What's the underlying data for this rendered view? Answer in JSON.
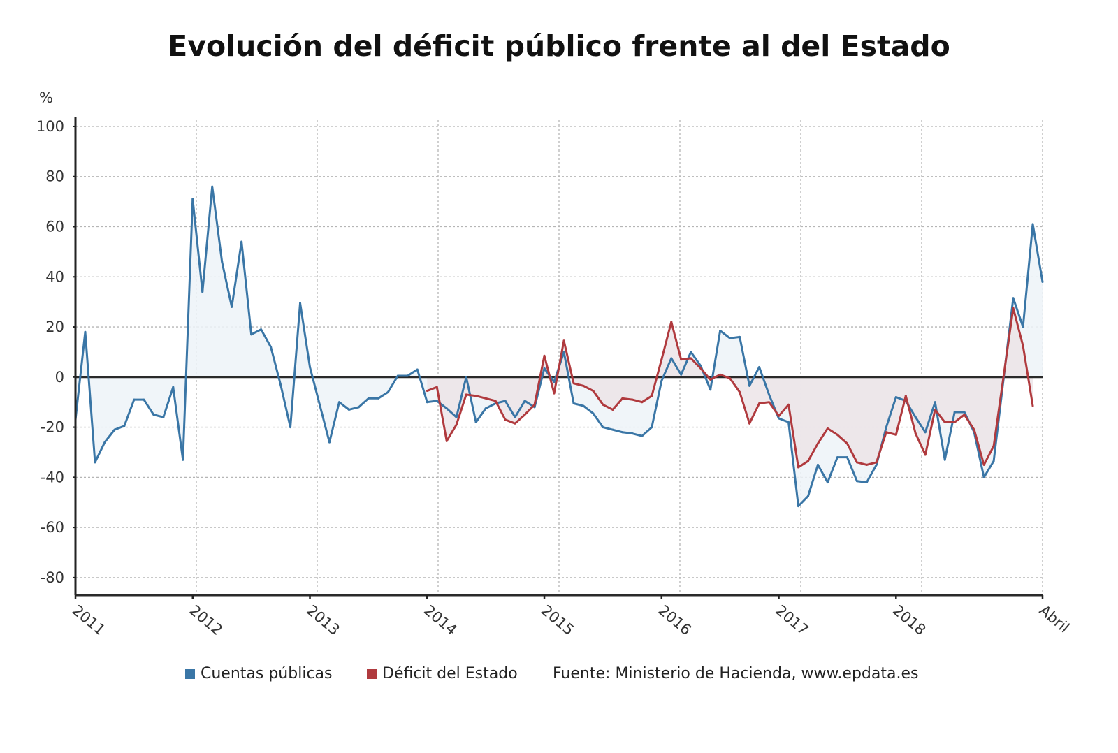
{
  "chart_data": {
    "type": "area",
    "title": "Evolución del déficit público frente al del Estado",
    "ylabel": "%",
    "ylim": [
      -87,
      102.5
    ],
    "yticks": [
      100,
      80,
      60,
      40,
      20,
      0,
      -20,
      -40,
      -60,
      -80
    ],
    "x_start": "2011-01",
    "x_end": "2019-04",
    "xtick_labels": [
      {
        "month_index": 0,
        "label": "2011"
      },
      {
        "month_index": 12,
        "label": "2012"
      },
      {
        "month_index": 24,
        "label": "2013"
      },
      {
        "month_index": 36,
        "label": "2014"
      },
      {
        "month_index": 48,
        "label": "2015"
      },
      {
        "month_index": 60,
        "label": "2016"
      },
      {
        "month_index": 72,
        "label": "2017"
      },
      {
        "month_index": 84,
        "label": "2018"
      },
      {
        "month_index": 99,
        "label": "Abril"
      }
    ],
    "grid": true,
    "legend_position": "bottom",
    "series": [
      {
        "name": "Cuentas públicas",
        "color": "#3a76a6",
        "fill": "#edf3f8",
        "start_index": 0,
        "values": [
          -17,
          18,
          -34,
          -26,
          -21,
          -19.5,
          -9,
          -9,
          -15,
          -16,
          -4,
          -33,
          71,
          34,
          76,
          46,
          28,
          54,
          17,
          19,
          12,
          -3,
          -20,
          29.5,
          4,
          -11,
          -26,
          -10,
          -13,
          -12,
          -8.5,
          -8.5,
          -6,
          0.5,
          0.5,
          3,
          -10,
          -9.5,
          -12.5,
          -16,
          0,
          -18,
          -12.5,
          -10.5,
          -9.5,
          -16,
          -9.5,
          -12,
          3.5,
          -2,
          10,
          -10.5,
          -11.5,
          -14.5,
          -20,
          -21,
          -22,
          -22.5,
          -23.5,
          -20,
          -1.5,
          7.5,
          1,
          10,
          4.5,
          -5,
          18.5,
          15.5,
          16,
          -3.5,
          4,
          -7,
          -16.5,
          -18,
          -51.5,
          -47.5,
          -35,
          -42,
          -32,
          -32,
          -41.5,
          -42,
          -35,
          -20,
          -8,
          -9.5,
          -16,
          -22,
          -10,
          -33,
          -14,
          -14,
          -22,
          -40,
          -33.5,
          -1,
          31.5,
          20,
          61,
          38
        ]
      },
      {
        "name": "Déficit del Estado",
        "color": "#b03a3e",
        "fill": "#ece4e8",
        "start_index": 36,
        "values": [
          -5.5,
          -4,
          -25.5,
          -19,
          -7,
          -7.5,
          -8.5,
          -9.5,
          -17,
          -18.5,
          -15,
          -11,
          8.5,
          -6.5,
          14.5,
          -2.5,
          -3.5,
          -5.5,
          -11,
          -13,
          -8.5,
          -9,
          -10,
          -7.5,
          7,
          22,
          7,
          7.5,
          3.5,
          -1,
          1,
          -0.5,
          -6,
          -18.5,
          -10.5,
          -10,
          -15.5,
          -11,
          -36,
          -33.5,
          -26.5,
          -20.5,
          -23,
          -26.5,
          -34,
          -35,
          -34,
          -22,
          -23,
          -7.5,
          -22.5,
          -31,
          -13,
          -18,
          -18,
          -15,
          -21,
          -35,
          -27.5,
          0,
          27.5,
          12.5,
          -11.5
        ]
      }
    ]
  },
  "legend": {
    "source": "Fuente: Ministerio de Hacienda, www.epdata.es"
  }
}
